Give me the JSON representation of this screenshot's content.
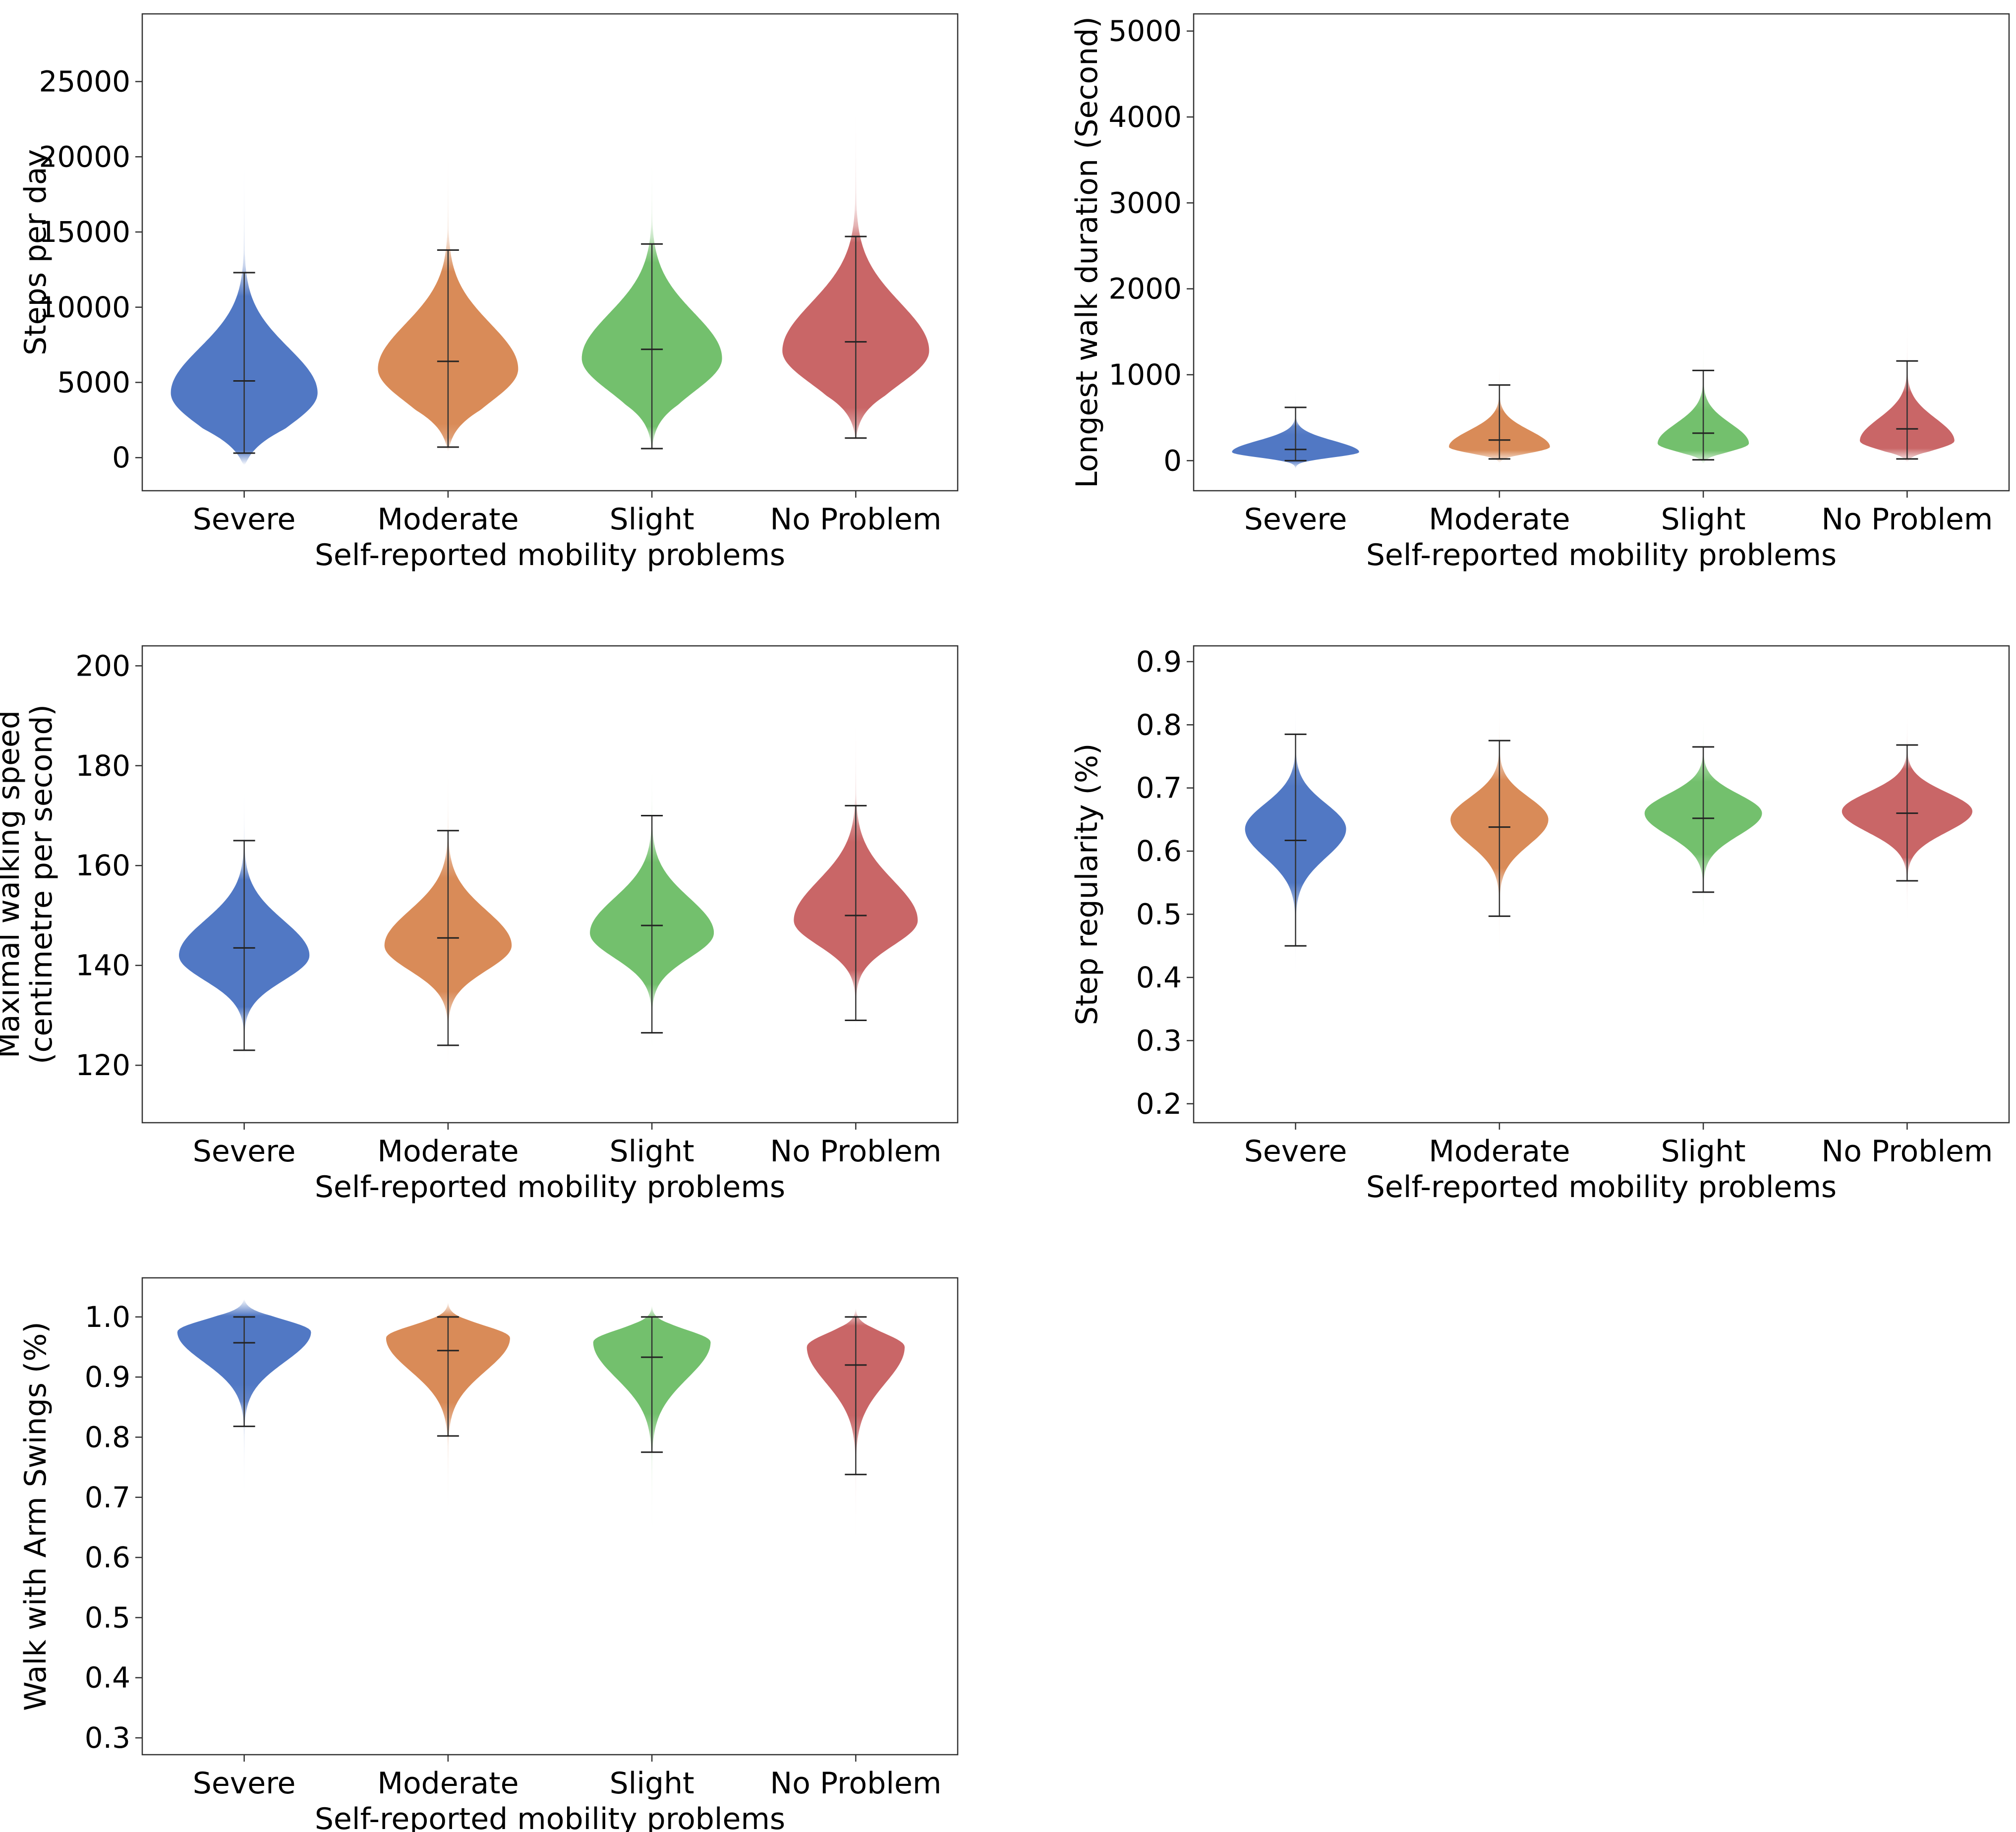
{
  "chart_data": [
    {
      "type": "violin",
      "xlabel": "Self-reported mobility problems",
      "ylabel": [
        "Steps per day"
      ],
      "categories": [
        "Severe",
        "Moderate",
        "Slight",
        "No Problem"
      ],
      "ylim": [
        -2200,
        29500
      ],
      "yticks": [
        0,
        5000,
        10000,
        15000,
        20000,
        25000
      ],
      "ytick_labels": [
        "0",
        "5000",
        "10000",
        "15000",
        "20000",
        "25000"
      ],
      "series": [
        {
          "name": "Severe",
          "min": 300,
          "median": 5100,
          "max": 12300,
          "mode": 4300,
          "spread_low": 2200,
          "spread_high": 3000,
          "tail_low": -500,
          "tail_high": 24000,
          "width": 0.9
        },
        {
          "name": "Moderate",
          "min": 700,
          "median": 6400,
          "max": 13800,
          "mode": 5900,
          "spread_low": 2200,
          "spread_high": 3000,
          "tail_low": 400,
          "tail_high": 22500,
          "width": 0.86
        },
        {
          "name": "Slight",
          "min": 600,
          "median": 7200,
          "max": 14200,
          "mode": 6600,
          "spread_low": 2200,
          "spread_high": 3000,
          "tail_low": 400,
          "tail_high": 20500,
          "width": 0.86
        },
        {
          "name": "No Problem",
          "min": 1300,
          "median": 7700,
          "max": 14700,
          "mode": 7100,
          "spread_low": 2200,
          "spread_high": 3200,
          "tail_low": 1100,
          "tail_high": 27500,
          "width": 0.9
        }
      ]
    },
    {
      "type": "violin",
      "xlabel": "Self-reported mobility problems",
      "ylabel": [
        "Longest walk duration (Second)"
      ],
      "categories": [
        "Severe",
        "Moderate",
        "Slight",
        "No Problem"
      ],
      "ylim": [
        -350,
        5200
      ],
      "yticks": [
        0,
        1000,
        2000,
        3000,
        4000,
        5000
      ],
      "ytick_labels": [
        "0",
        "1000",
        "2000",
        "3000",
        "4000",
        "5000"
      ],
      "series": [
        {
          "name": "Severe",
          "min": 0,
          "median": 130,
          "max": 620,
          "mode": 100,
          "spread_low": 60,
          "spread_high": 130,
          "tail_low": -100,
          "tail_high": 2300,
          "width": 0.78
        },
        {
          "name": "Moderate",
          "min": 20,
          "median": 240,
          "max": 880,
          "mode": 160,
          "spread_low": 70,
          "spread_high": 190,
          "tail_low": -30,
          "tail_high": 3600,
          "width": 0.62
        },
        {
          "name": "Slight",
          "min": 10,
          "median": 320,
          "max": 1050,
          "mode": 200,
          "spread_low": 90,
          "spread_high": 230,
          "tail_low": -40,
          "tail_high": 3700,
          "width": 0.56
        },
        {
          "name": "No Problem",
          "min": 20,
          "median": 370,
          "max": 1160,
          "mode": 230,
          "spread_low": 100,
          "spread_high": 260,
          "tail_low": -20,
          "tail_high": 3900,
          "width": 0.58
        }
      ]
    },
    {
      "type": "violin",
      "xlabel": "Self-reported mobility problems",
      "ylabel": [
        "Maximal walking speed",
        "(centimetre per second)"
      ],
      "categories": [
        "Severe",
        "Moderate",
        "Slight",
        "No Problem"
      ],
      "ylim": [
        108.5,
        204
      ],
      "yticks": [
        120,
        140,
        160,
        180,
        200
      ],
      "ytick_labels": [
        "120",
        "140",
        "160",
        "180",
        "200"
      ],
      "series": [
        {
          "name": "Severe",
          "min": 123,
          "median": 143.5,
          "max": 165,
          "mode": 142,
          "spread_low": 5,
          "spread_high": 7,
          "tail_low": 119,
          "tail_high": 180,
          "width": 0.8
        },
        {
          "name": "Moderate",
          "min": 124,
          "median": 145.5,
          "max": 167,
          "mode": 144,
          "spread_low": 5,
          "spread_high": 7,
          "tail_low": 112,
          "tail_high": 190,
          "width": 0.78
        },
        {
          "name": "Slight",
          "min": 126.5,
          "median": 148,
          "max": 170,
          "mode": 146.5,
          "spread_low": 5,
          "spread_high": 7,
          "tail_low": 120,
          "tail_high": 185,
          "width": 0.76
        },
        {
          "name": "No Problem",
          "min": 129,
          "median": 150,
          "max": 172,
          "mode": 149,
          "spread_low": 5,
          "spread_high": 8,
          "tail_low": 123,
          "tail_high": 200,
          "width": 0.76
        }
      ]
    },
    {
      "type": "violin",
      "xlabel": "Self-reported mobility problems",
      "ylabel": [
        "Step regularity (%)"
      ],
      "categories": [
        "Severe",
        "Moderate",
        "Slight",
        "No Problem"
      ],
      "ylim": [
        0.17,
        0.925
      ],
      "yticks": [
        0.2,
        0.3,
        0.4,
        0.5,
        0.6,
        0.7,
        0.8,
        0.9
      ],
      "ytick_labels": [
        "0.2",
        "0.3",
        "0.4",
        "0.5",
        "0.6",
        "0.7",
        "0.8",
        "0.9"
      ],
      "series": [
        {
          "name": "Severe",
          "min": 0.45,
          "median": 0.617,
          "max": 0.785,
          "mode": 0.635,
          "spread_low": 0.045,
          "spread_high": 0.04,
          "tail_low": 0.27,
          "tail_high": 0.88,
          "width": 0.62
        },
        {
          "name": "Moderate",
          "min": 0.497,
          "median": 0.638,
          "max": 0.775,
          "mode": 0.65,
          "spread_low": 0.04,
          "spread_high": 0.035,
          "tail_low": 0.21,
          "tail_high": 0.88,
          "width": 0.6
        },
        {
          "name": "Slight",
          "min": 0.535,
          "median": 0.652,
          "max": 0.765,
          "mode": 0.66,
          "spread_low": 0.035,
          "spread_high": 0.03,
          "tail_low": 0.32,
          "tail_high": 0.87,
          "width": 0.72
        },
        {
          "name": "No Problem",
          "min": 0.553,
          "median": 0.66,
          "max": 0.768,
          "mode": 0.663,
          "spread_low": 0.033,
          "spread_high": 0.03,
          "tail_low": 0.39,
          "tail_high": 0.87,
          "width": 0.8
        }
      ]
    },
    {
      "type": "violin",
      "xlabel": "Self-reported mobility problems",
      "ylabel": [
        "Walk with Arm Swings (%)"
      ],
      "categories": [
        "Severe",
        "Moderate",
        "Slight",
        "No Problem"
      ],
      "ylim": [
        0.272,
        1.065
      ],
      "yticks": [
        0.3,
        0.4,
        0.5,
        0.6,
        0.7,
        0.8,
        0.9,
        1.0
      ],
      "ytick_labels": [
        "0.3",
        "0.4",
        "0.5",
        "0.6",
        "0.7",
        "0.8",
        "0.9",
        "1.0"
      ],
      "series": [
        {
          "name": "Severe",
          "min": 0.818,
          "median": 0.957,
          "max": 1.0,
          "mode": 0.975,
          "spread_low": 0.05,
          "spread_high": 0.02,
          "tail_low": 0.35,
          "tail_high": 1.03,
          "width": 0.82
        },
        {
          "name": "Moderate",
          "min": 0.802,
          "median": 0.944,
          "max": 1.0,
          "mode": 0.965,
          "spread_low": 0.055,
          "spread_high": 0.02,
          "tail_low": 0.45,
          "tail_high": 1.025,
          "width": 0.76
        },
        {
          "name": "Slight",
          "min": 0.775,
          "median": 0.933,
          "max": 1.0,
          "mode": 0.958,
          "spread_low": 0.06,
          "spread_high": 0.02,
          "tail_low": 0.4,
          "tail_high": 1.02,
          "width": 0.72
        },
        {
          "name": "No Problem",
          "min": 0.738,
          "median": 0.92,
          "max": 1.0,
          "mode": 0.95,
          "spread_low": 0.06,
          "spread_high": 0.022,
          "tail_low": 0.3,
          "tail_high": 1.015,
          "width": 0.6
        }
      ]
    }
  ],
  "palette": {
    "Severe": "#5178c4",
    "Moderate": "#d98b58",
    "Slight": "#73c06d",
    "No Problem": "#c96667"
  }
}
